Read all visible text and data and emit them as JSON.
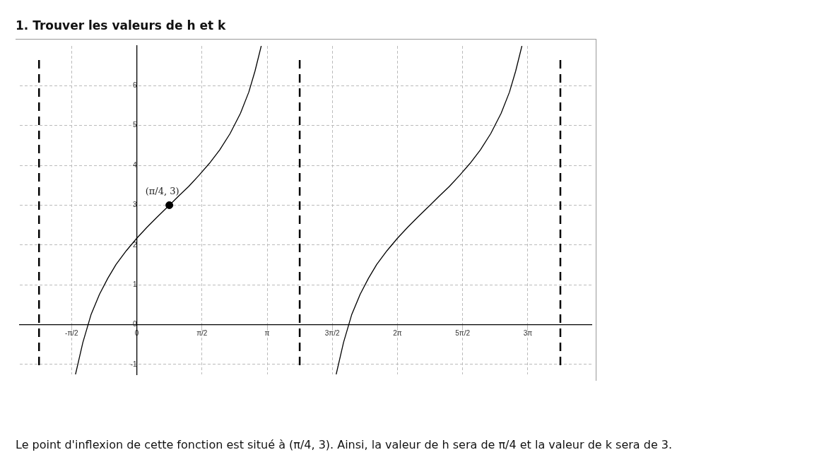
{
  "chart_data": {
    "type": "line",
    "title": "1. Trouver les valeurs de h et k",
    "annotations": [
      {
        "text": "(π/4, 3)",
        "x": 0.785,
        "y": 3
      },
      "Le point d'inflexion de cette fonction est situé à (π/4, 3). Ainsi, la valeur de h sera de π/4 et la valeur de k sera de 3."
    ],
    "series": [
      {
        "color": "#000000",
        "x": [
          -1.477,
          -1.3,
          -1.1,
          -0.9,
          -0.7,
          -0.5,
          -0.25,
          0,
          0.25,
          0.5,
          0.785,
          1.0,
          1.25,
          1.5,
          1.75,
          2.0,
          2.25,
          2.5,
          2.7,
          2.85,
          3.0
        ],
        "values": [
          -1.25,
          -0.45,
          0.26,
          0.76,
          1.16,
          1.51,
          1.86,
          2.17,
          2.45,
          2.71,
          3,
          3.22,
          3.47,
          3.75,
          4.05,
          4.39,
          4.8,
          5.31,
          5.84,
          6.37,
          7.0
        ]
      },
      {
        "color": "#000000",
        "x": [
          4.806,
          4.983,
          5.183,
          5.383,
          5.583,
          5.783,
          6.033,
          6.283,
          6.533,
          6.783,
          7.068,
          7.283,
          7.533,
          7.783,
          8.033,
          8.283,
          8.533,
          8.783,
          8.983,
          9.133,
          9.283
        ],
        "values": [
          -1.25,
          -0.45,
          0.26,
          0.76,
          1.16,
          1.51,
          1.86,
          2.17,
          2.45,
          2.71,
          3,
          3.22,
          3.47,
          3.75,
          4.05,
          4.39,
          4.8,
          5.31,
          5.84,
          6.37,
          7.0
        ]
      },
      {
        "type": "scatter",
        "color": "#000000",
        "marker": "circle",
        "x": [
          0.785
        ],
        "values": [
          3
        ]
      }
    ],
    "xlim": [
      -2.82,
      10.96
    ],
    "ylim": [
      -1.25,
      7.0
    ],
    "xticks": [
      {
        "value": -1.571,
        "label": "-π/2"
      },
      {
        "value": 0,
        "label": "0"
      },
      {
        "value": 1.571,
        "label": "π/2"
      },
      {
        "value": 3.142,
        "label": "π"
      },
      {
        "value": 4.712,
        "label": "3π/2"
      },
      {
        "value": 6.283,
        "label": "2π"
      },
      {
        "value": 7.854,
        "label": "5π/2"
      },
      {
        "value": 9.425,
        "label": "3π"
      }
    ],
    "yticks": [
      -1,
      0,
      1,
      2,
      3,
      4,
      5,
      6
    ],
    "grid": true,
    "legend": false,
    "marker": "none",
    "line_style": "solid",
    "ref_lines": [
      {
        "axis": "x",
        "value": -2.356,
        "color": "#000000",
        "line_style": "dashed"
      },
      {
        "axis": "x",
        "value": 3.927,
        "color": "#000000",
        "line_style": "dashed"
      },
      {
        "axis": "x",
        "value": 10.21,
        "color": "#000000",
        "line_style": "dashed"
      }
    ]
  }
}
